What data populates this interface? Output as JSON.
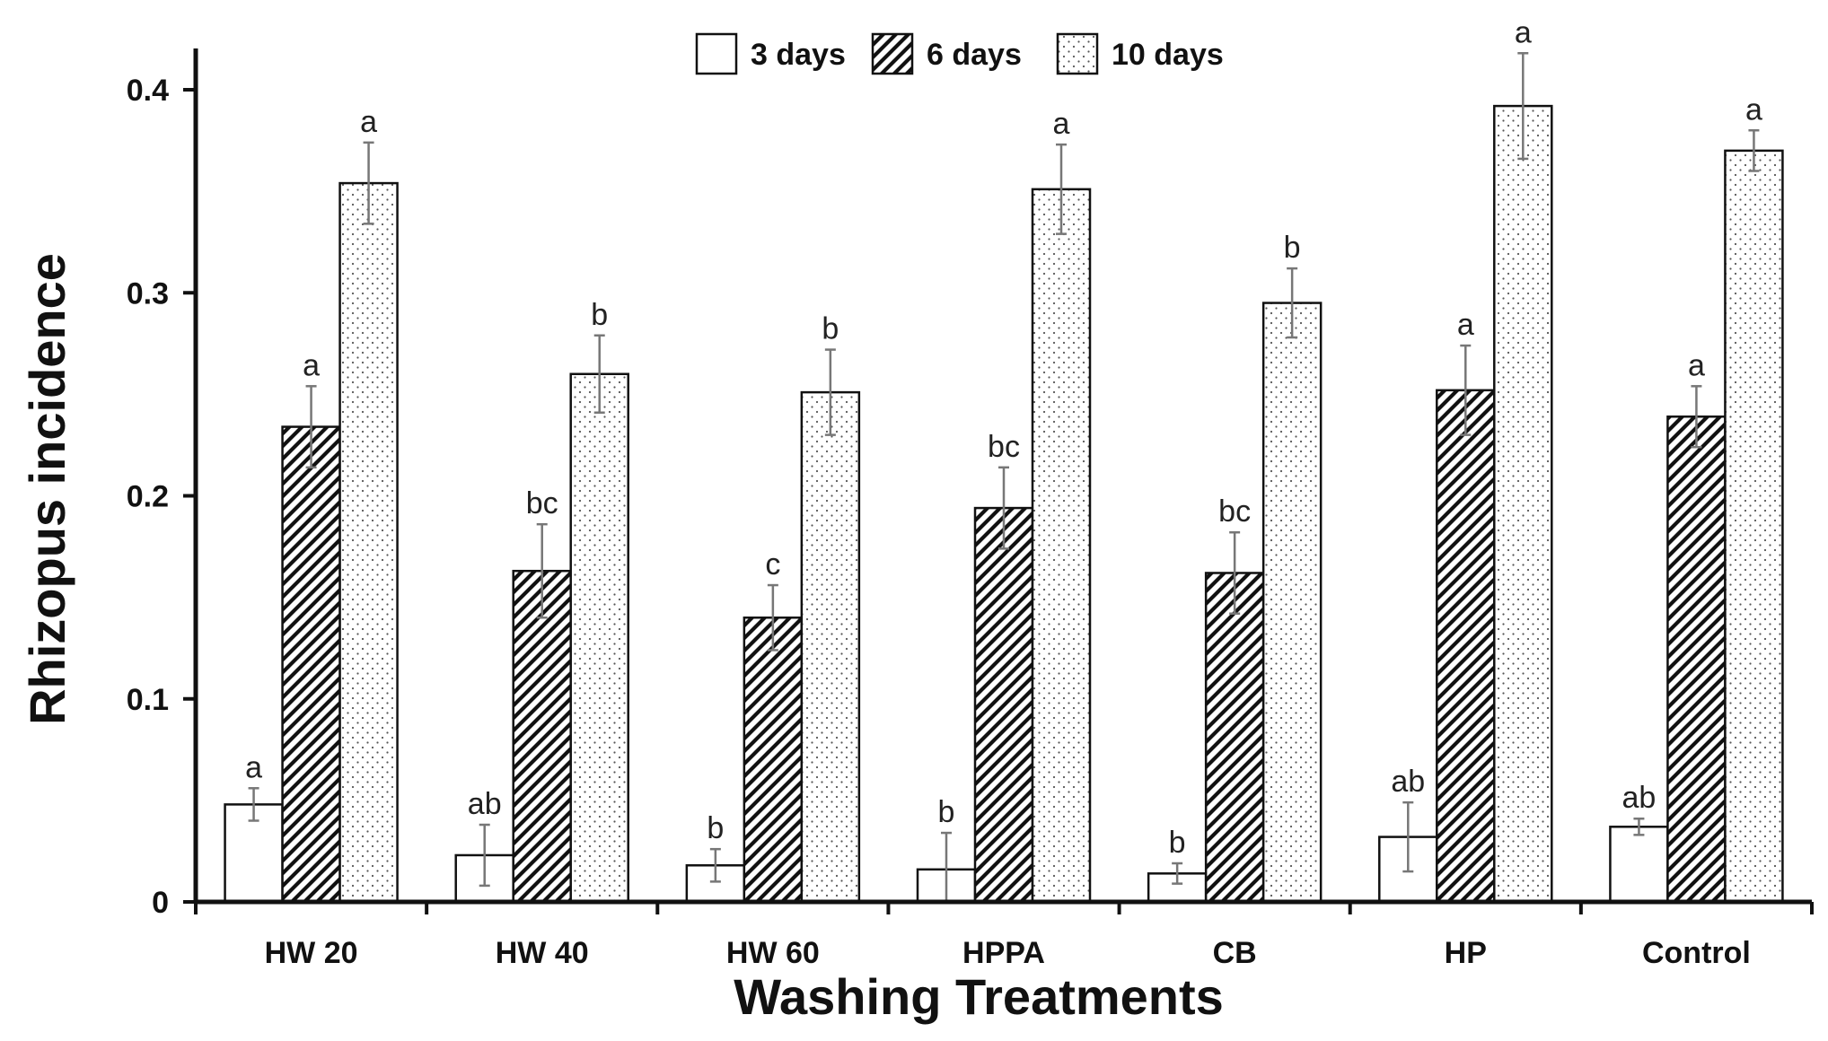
{
  "chart_data": {
    "type": "bar",
    "xlabel": "Washing  Treatments",
    "ylabel": "Rhizopus incidence",
    "ylim": [
      0,
      0.42
    ],
    "yticks": [
      0,
      0.1,
      0.2,
      0.3,
      0.4
    ],
    "ytick_labels": [
      "0",
      "0.1",
      "0.2",
      "0.3",
      "0.4"
    ],
    "grid": false,
    "legend_position": "top",
    "categories": [
      "HW 20",
      "HW 40",
      "HW 60",
      "HPPA",
      "CB",
      "HP",
      "Control"
    ],
    "series": [
      {
        "name": "3 days",
        "pattern": "blank",
        "values": [
          0.048,
          0.023,
          0.018,
          0.016,
          0.014,
          0.032,
          0.037
        ],
        "errors": [
          0.008,
          0.015,
          0.008,
          0.018,
          0.005,
          0.017,
          0.004
        ],
        "letters": [
          "a",
          "ab",
          "b",
          "b",
          "b",
          "ab",
          "ab"
        ]
      },
      {
        "name": "6 days",
        "pattern": "diagonal-hatch",
        "values": [
          0.234,
          0.163,
          0.14,
          0.194,
          0.162,
          0.252,
          0.239
        ],
        "errors": [
          0.02,
          0.023,
          0.016,
          0.02,
          0.02,
          0.022,
          0.015
        ],
        "letters": [
          "a",
          "bc",
          "c",
          "bc",
          "bc",
          "a",
          "a"
        ]
      },
      {
        "name": "10 days",
        "pattern": "dotted",
        "values": [
          0.354,
          0.26,
          0.251,
          0.351,
          0.295,
          0.392,
          0.37
        ],
        "errors": [
          0.02,
          0.019,
          0.021,
          0.022,
          0.017,
          0.026,
          0.01
        ],
        "letters": [
          "a",
          "b",
          "b",
          "a",
          "b",
          "a",
          "a"
        ]
      }
    ],
    "colors": {
      "bar_stroke": "#111111",
      "bar_fill": "#ffffff",
      "hatch": "#111111",
      "dots": "#555555",
      "error_bar": "#777777"
    }
  }
}
